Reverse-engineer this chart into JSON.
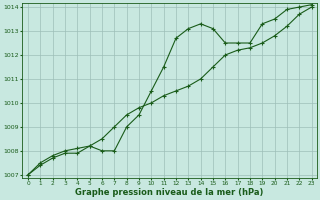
{
  "x": [
    0,
    1,
    2,
    3,
    4,
    5,
    6,
    7,
    8,
    9,
    10,
    11,
    12,
    13,
    14,
    15,
    16,
    17,
    18,
    19,
    20,
    21,
    22,
    23
  ],
  "y_curve": [
    1007.0,
    1007.4,
    1007.7,
    1007.9,
    1007.9,
    1008.2,
    1008.0,
    1008.0,
    1009.0,
    1009.5,
    1010.5,
    1011.5,
    1012.7,
    1013.1,
    1013.3,
    1013.1,
    1012.5,
    1012.5,
    1012.5,
    1013.3,
    1013.5,
    1013.9,
    1014.0,
    1014.1
  ],
  "y_line": [
    1007.0,
    1007.5,
    1007.8,
    1008.0,
    1008.1,
    1008.2,
    1008.5,
    1009.0,
    1009.5,
    1009.8,
    1010.0,
    1010.3,
    1010.5,
    1010.7,
    1011.0,
    1011.5,
    1012.0,
    1012.2,
    1012.3,
    1012.5,
    1012.8,
    1013.2,
    1013.7,
    1014.0
  ],
  "line_color": "#1a5c1a",
  "bg_color": "#c8e8e0",
  "grid_color": "#9dbfb8",
  "text_color": "#1a5c1a",
  "xlabel": "Graphe pression niveau de la mer (hPa)",
  "ylim": [
    1007,
    1014
  ],
  "xlim": [
    0,
    23
  ],
  "yticks": [
    1007,
    1008,
    1009,
    1010,
    1011,
    1012,
    1013,
    1014
  ],
  "xticks": [
    0,
    1,
    2,
    3,
    4,
    5,
    6,
    7,
    8,
    9,
    10,
    11,
    12,
    13,
    14,
    15,
    16,
    17,
    18,
    19,
    20,
    21,
    22,
    23
  ]
}
